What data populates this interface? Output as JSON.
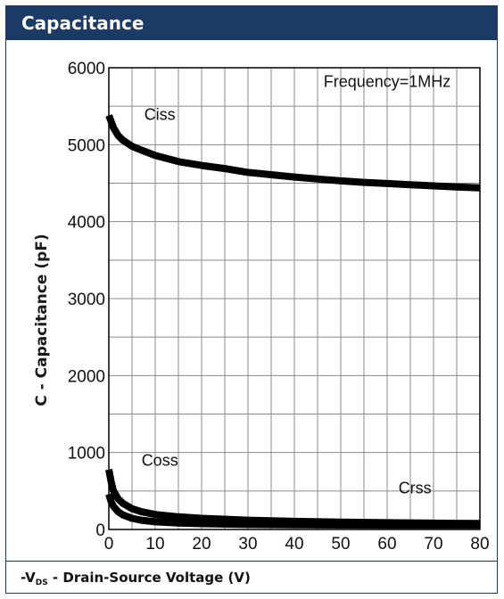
{
  "header": {
    "title": "Capacitance"
  },
  "footer": {
    "prefix": "-V",
    "subscript": "DS",
    "suffix": " - Drain-Source Voltage (V)"
  },
  "chart_data": {
    "type": "line",
    "ylabel": "C - Capacitance (pF)",
    "xlim": [
      0,
      80
    ],
    "ylim": [
      0,
      6000
    ],
    "xticks": [
      0,
      10,
      20,
      30,
      40,
      50,
      60,
      70,
      80
    ],
    "yticks": [
      0,
      1000,
      2000,
      3000,
      4000,
      5000,
      6000
    ],
    "grid": true,
    "line_color": "#000000",
    "annotations": [
      {
        "text": "Frequency=1MHz",
        "x": 60,
        "y": 5750
      },
      {
        "text": "Ciss",
        "x": 11,
        "y": 5320
      },
      {
        "text": "Coss",
        "x": 11,
        "y": 830
      },
      {
        "text": "Crss",
        "x": 66,
        "y": 470
      }
    ],
    "series": [
      {
        "name": "Ciss",
        "x": [
          0,
          0.5,
          1,
          2,
          3,
          5,
          7,
          10,
          15,
          20,
          25,
          30,
          35,
          40,
          45,
          50,
          55,
          60,
          65,
          70,
          75,
          80
        ],
        "values": [
          5380,
          5300,
          5220,
          5120,
          5060,
          4980,
          4930,
          4860,
          4780,
          4730,
          4690,
          4640,
          4610,
          4580,
          4555,
          4530,
          4510,
          4495,
          4480,
          4465,
          4450,
          4440
        ]
      },
      {
        "name": "Coss",
        "x": [
          0,
          0.5,
          1,
          2,
          3,
          5,
          7,
          10,
          15,
          20,
          30,
          40,
          50,
          60,
          70,
          80
        ],
        "values": [
          780,
          620,
          500,
          400,
          340,
          270,
          230,
          195,
          165,
          145,
          120,
          105,
          95,
          88,
          82,
          78
        ]
      },
      {
        "name": "Crss",
        "x": [
          0,
          0.5,
          1,
          2,
          3,
          5,
          7,
          10,
          15,
          20,
          30,
          40,
          50,
          60,
          70,
          80
        ],
        "values": [
          460,
          360,
          300,
          230,
          190,
          145,
          120,
          100,
          85,
          75,
          65,
          60,
          58,
          56,
          55,
          54
        ]
      }
    ]
  }
}
